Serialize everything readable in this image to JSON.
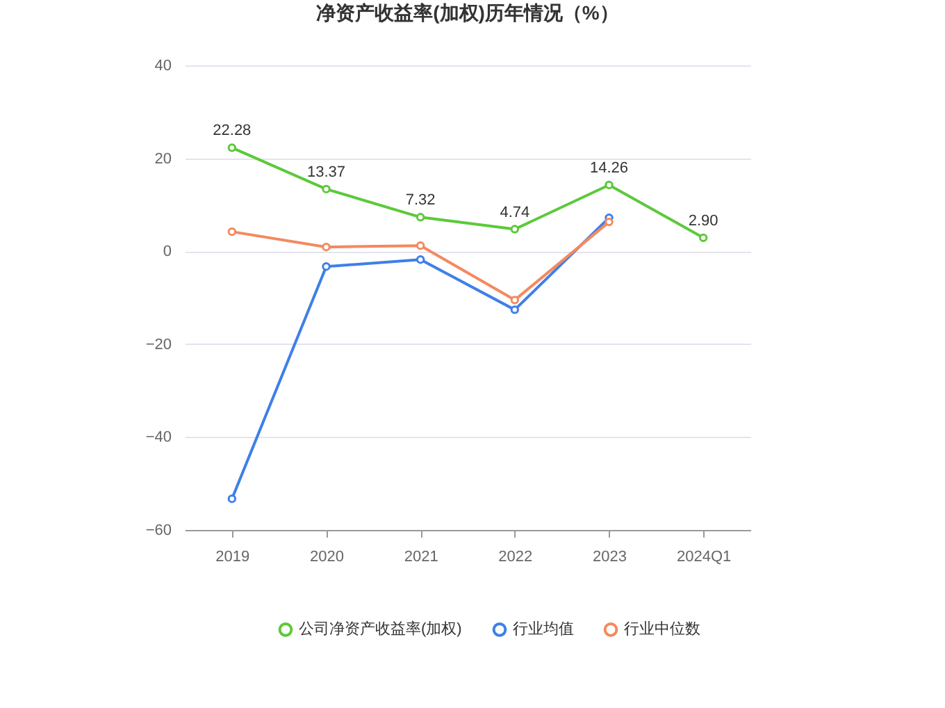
{
  "chart_data": {
    "type": "line",
    "title": "净资产收益率(加权)历年情况（%）",
    "categories": [
      "2019",
      "2020",
      "2021",
      "2022",
      "2023",
      "2024Q1"
    ],
    "series": [
      {
        "name": "公司净资产收益率(加权)",
        "color": "#5cc93a",
        "values": [
          22.28,
          13.37,
          7.32,
          4.74,
          14.26,
          2.9
        ],
        "value_labels": [
          "22.28",
          "13.37",
          "7.32",
          "4.74",
          "14.26",
          "2.90"
        ]
      },
      {
        "name": "行业均值",
        "color": "#3f7fe8",
        "values": [
          -53.3,
          -3.3,
          -1.8,
          -12.6,
          7.2,
          null
        ]
      },
      {
        "name": "行业中位数",
        "color": "#f4895f",
        "values": [
          4.2,
          0.9,
          1.2,
          -10.5,
          6.3,
          null
        ]
      }
    ],
    "ylim": [
      -60,
      40
    ],
    "yticks": [
      -60,
      -40,
      -20,
      0,
      20,
      40
    ],
    "grid": "y",
    "legend": "bottom",
    "marker": "circle",
    "line_style": "solid"
  }
}
